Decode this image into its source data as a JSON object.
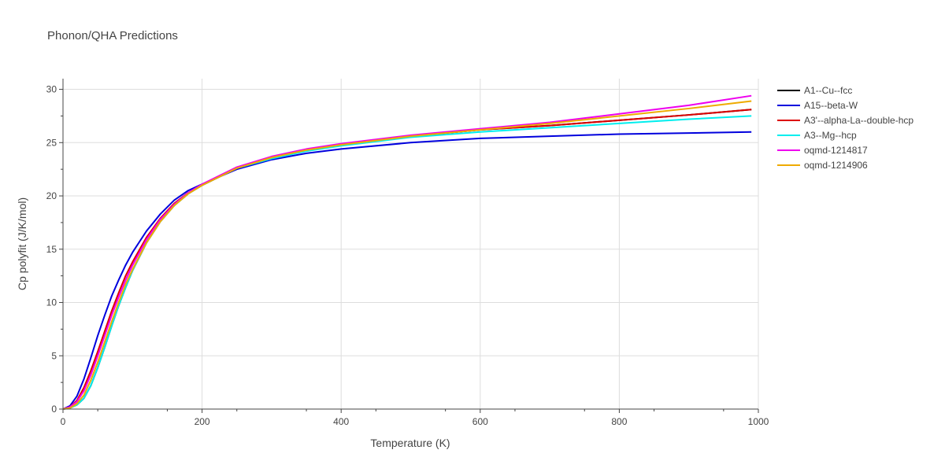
{
  "chart_data": {
    "type": "line",
    "title": "Phonon/QHA Predictions",
    "xlabel": "Temperature (K)",
    "ylabel": "Cp polyfit (J/K/mol)",
    "xlim": [
      0,
      1000
    ],
    "ylim": [
      0,
      31
    ],
    "xticks": [
      0,
      200,
      400,
      600,
      800,
      1000
    ],
    "yticks": [
      0,
      5,
      10,
      15,
      20,
      25,
      30
    ],
    "grid": true,
    "legend_position": "top-right",
    "series": [
      {
        "name": "A1--Cu--fcc",
        "color": "#000000",
        "x": [
          0,
          10,
          20,
          30,
          40,
          50,
          60,
          70,
          80,
          90,
          100,
          120,
          140,
          160,
          180,
          200,
          250,
          300,
          350,
          400,
          500,
          600,
          700,
          800,
          900,
          990
        ],
        "y": [
          0,
          0.1,
          0.4,
          1.0,
          2.2,
          3.9,
          5.8,
          7.8,
          9.7,
          11.4,
          13.0,
          15.6,
          17.6,
          19.1,
          20.2,
          21.0,
          22.6,
          23.6,
          24.3,
          24.8,
          25.6,
          26.2,
          26.6,
          27.1,
          27.6,
          28.1
        ]
      },
      {
        "name": "A15--beta-W",
        "color": "#0000dd",
        "x": [
          0,
          10,
          20,
          30,
          40,
          50,
          60,
          70,
          80,
          90,
          100,
          120,
          140,
          160,
          180,
          200,
          250,
          300,
          350,
          400,
          500,
          600,
          700,
          800,
          900,
          990
        ],
        "y": [
          0,
          0.3,
          1.2,
          2.8,
          4.8,
          6.9,
          8.8,
          10.6,
          12.1,
          13.5,
          14.7,
          16.7,
          18.3,
          19.6,
          20.5,
          21.1,
          22.5,
          23.4,
          24.0,
          24.4,
          25.0,
          25.4,
          25.6,
          25.8,
          25.9,
          26.0
        ]
      },
      {
        "name": "A3'--alpha-La--double-hcp",
        "color": "#dd0000",
        "x": [
          0,
          10,
          20,
          30,
          40,
          50,
          60,
          70,
          80,
          90,
          100,
          120,
          140,
          160,
          180,
          200,
          250,
          300,
          350,
          400,
          500,
          600,
          700,
          800,
          900,
          990
        ],
        "y": [
          0,
          0.2,
          0.8,
          2.0,
          3.6,
          5.4,
          7.3,
          9.2,
          10.9,
          12.5,
          13.8,
          16.1,
          17.9,
          19.3,
          20.3,
          21.0,
          22.6,
          23.6,
          24.3,
          24.8,
          25.6,
          26.2,
          26.6,
          27.1,
          27.6,
          28.1
        ]
      },
      {
        "name": "A3--Mg--hcp",
        "color": "#00eeee",
        "x": [
          0,
          10,
          20,
          30,
          40,
          50,
          60,
          70,
          80,
          90,
          100,
          120,
          140,
          160,
          180,
          200,
          250,
          300,
          350,
          400,
          500,
          600,
          700,
          800,
          900,
          990
        ],
        "y": [
          0,
          0.1,
          0.4,
          1.0,
          2.2,
          3.9,
          5.8,
          7.8,
          9.7,
          11.4,
          13.0,
          15.6,
          17.6,
          19.1,
          20.2,
          21.0,
          22.6,
          23.5,
          24.2,
          24.7,
          25.5,
          26.0,
          26.4,
          26.8,
          27.2,
          27.5
        ]
      },
      {
        "name": "oqmd-1214817",
        "color": "#ee00ee",
        "x": [
          0,
          10,
          20,
          30,
          40,
          50,
          60,
          70,
          80,
          90,
          100,
          120,
          140,
          160,
          180,
          200,
          250,
          300,
          350,
          400,
          500,
          600,
          700,
          800,
          900,
          990
        ],
        "y": [
          0,
          0.2,
          0.7,
          1.7,
          3.2,
          5.0,
          6.9,
          8.8,
          10.5,
          12.1,
          13.5,
          15.9,
          17.8,
          19.2,
          20.3,
          21.1,
          22.7,
          23.7,
          24.4,
          24.9,
          25.7,
          26.3,
          26.9,
          27.7,
          28.5,
          29.4
        ]
      },
      {
        "name": "oqmd-1214906",
        "color": "#eeaa00",
        "x": [
          0,
          10,
          20,
          30,
          40,
          50,
          60,
          70,
          80,
          90,
          100,
          120,
          140,
          160,
          180,
          200,
          250,
          300,
          350,
          400,
          500,
          600,
          700,
          800,
          900,
          990
        ],
        "y": [
          0,
          0.1,
          0.5,
          1.3,
          2.7,
          4.4,
          6.3,
          8.2,
          10.0,
          11.7,
          13.1,
          15.6,
          17.6,
          19.1,
          20.2,
          21.0,
          22.6,
          23.6,
          24.3,
          24.8,
          25.6,
          26.2,
          26.8,
          27.5,
          28.2,
          28.9
        ]
      }
    ]
  }
}
